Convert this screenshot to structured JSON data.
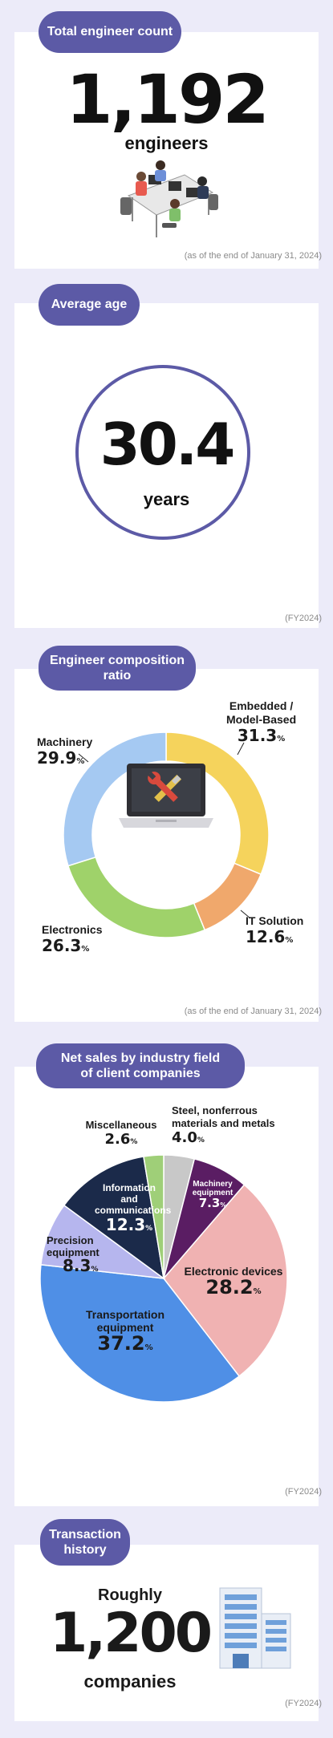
{
  "engineer_count": {
    "title": "Total engineer count",
    "value": "1,192",
    "unit": "engineers",
    "note": "(as of the end of January 31, 2024)"
  },
  "average_age": {
    "title": "Average age",
    "value": "30.4",
    "unit": "years",
    "note": "(FY2024)"
  },
  "composition": {
    "title_line1": "Engineer composition",
    "title_line2": "ratio",
    "note": "(as of the end of January 31, 2024)",
    "pct_sign": "%"
  },
  "sales": {
    "title_line1": "Net sales by industry field",
    "title_line2": "of client companies",
    "note": "(FY2024)",
    "pct_sign": "%"
  },
  "transactions": {
    "title_line1": "Transaction",
    "title_line2": "history",
    "prefix": "Roughly",
    "value": "1,200",
    "unit": "companies",
    "note": "(FY2024)"
  },
  "chart_data": [
    {
      "type": "pie",
      "variant": "donut",
      "title": "Engineer composition ratio",
      "unit": "%",
      "slices": [
        {
          "label": "Embedded / Model-Based",
          "value": 31.3,
          "color": "#f5d35c"
        },
        {
          "label": "IT Solution",
          "value": 12.6,
          "color": "#f0a86c"
        },
        {
          "label": "Electronics",
          "value": 26.3,
          "color": "#9fd26a"
        },
        {
          "label": "Machinery",
          "value": 29.9,
          "color": "#a5c9f2"
        }
      ]
    },
    {
      "type": "pie",
      "title": "Net sales by industry field of client companies",
      "unit": "%",
      "slices": [
        {
          "label": "Steel, nonferrous materials and metals",
          "value": 4.0,
          "color": "#c8c8c8"
        },
        {
          "label": "Machinery equipment",
          "value": 7.3,
          "color": "#5a1d63"
        },
        {
          "label": "Electronic devices",
          "value": 28.2,
          "color": "#f0b2b2"
        },
        {
          "label": "Transportation equipment",
          "value": 37.2,
          "color": "#4f8fe6"
        },
        {
          "label": "Precision equipment",
          "value": 8.3,
          "color": "#b6b6ee"
        },
        {
          "label": "Information and communications",
          "value": 12.3,
          "color": "#1b2a4a"
        },
        {
          "label": "Miscellaneous",
          "value": 2.6,
          "color": "#9fcf78"
        }
      ]
    }
  ]
}
